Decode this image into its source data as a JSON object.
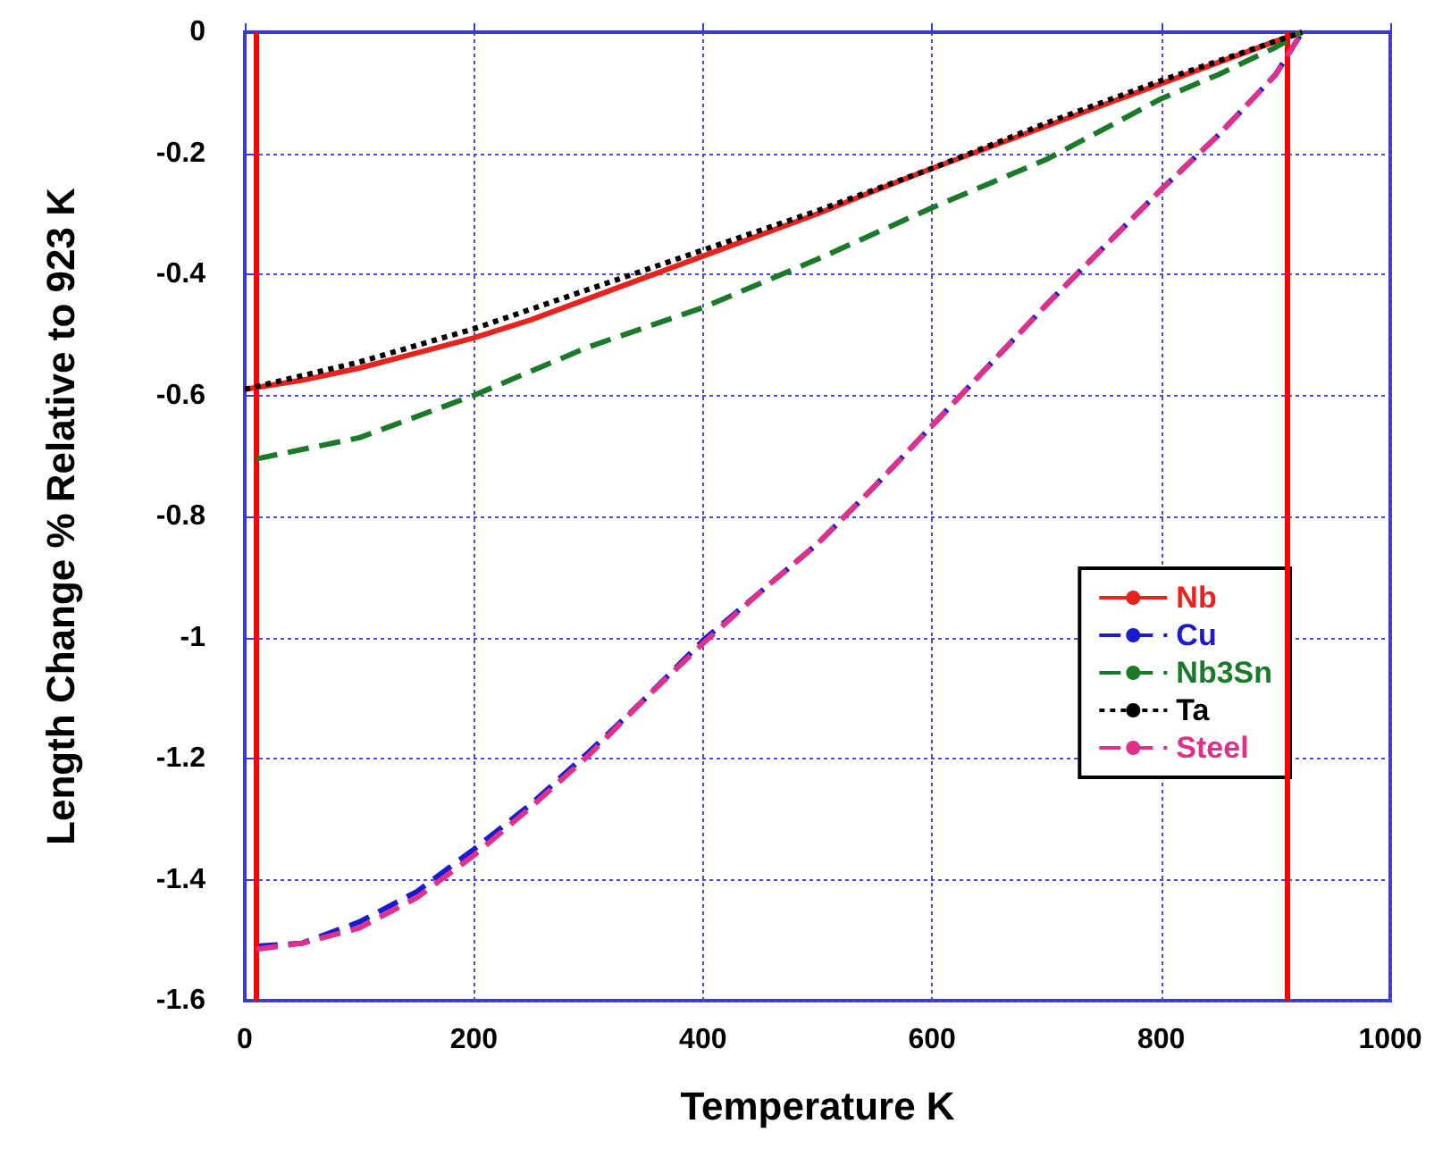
{
  "chart_data": {
    "type": "line",
    "xlabel": "Temperature K",
    "ylabel": "Length Change % Relative to 923 K",
    "xlim": [
      0,
      1000
    ],
    "xticks": [
      0,
      200,
      400,
      600,
      800,
      1000
    ],
    "ylim": [
      -1.6,
      0
    ],
    "yticks": [
      -1.6,
      -1.4,
      -1.2,
      -1,
      -0.8,
      -0.6,
      -0.4,
      -0.2,
      0
    ],
    "grid": true,
    "legend": "right",
    "marker": "none",
    "ref_lines": [
      {
        "axis": "x",
        "value": 10,
        "color": "#ff0000"
      },
      {
        "axis": "x",
        "value": 910,
        "color": "#ff0000"
      }
    ],
    "series": [
      {
        "name": "Nb",
        "color": "#e8231e",
        "line_style": "solid",
        "x": [
          0,
          50,
          100,
          150,
          200,
          250,
          300,
          350,
          400,
          450,
          500,
          550,
          600,
          650,
          700,
          750,
          800,
          850,
          900,
          923
        ],
        "values": [
          -0.59,
          -0.575,
          -0.555,
          -0.53,
          -0.505,
          -0.475,
          -0.44,
          -0.405,
          -0.37,
          -0.335,
          -0.3,
          -0.262,
          -0.225,
          -0.19,
          -0.155,
          -0.12,
          -0.085,
          -0.05,
          -0.015,
          0
        ]
      },
      {
        "name": "Cu",
        "color": "#1a1ad0",
        "line_style": "dashed",
        "x": [
          10,
          50,
          100,
          150,
          200,
          250,
          300,
          350,
          400,
          450,
          500,
          550,
          600,
          650,
          700,
          750,
          800,
          850,
          900,
          923
        ],
        "values": [
          -1.51,
          -1.505,
          -1.47,
          -1.42,
          -1.35,
          -1.275,
          -1.19,
          -1.1,
          -1.005,
          -0.925,
          -0.845,
          -0.75,
          -0.65,
          -0.55,
          -0.45,
          -0.355,
          -0.26,
          -0.17,
          -0.07,
          0
        ]
      },
      {
        "name": "Nb3Sn",
        "color": "#1a7a2a",
        "line_style": "dashed",
        "x": [
          10,
          100,
          200,
          300,
          400,
          500,
          600,
          700,
          800,
          850,
          900,
          923
        ],
        "values": [
          -0.705,
          -0.67,
          -0.6,
          -0.52,
          -0.455,
          -0.375,
          -0.29,
          -0.21,
          -0.11,
          -0.07,
          -0.025,
          0
        ]
      },
      {
        "name": "Ta",
        "color": "#000000",
        "line_style": "dotted",
        "x": [
          0,
          100,
          200,
          300,
          400,
          500,
          600,
          700,
          800,
          923
        ],
        "values": [
          -0.59,
          -0.545,
          -0.49,
          -0.425,
          -0.36,
          -0.295,
          -0.225,
          -0.15,
          -0.08,
          0
        ]
      },
      {
        "name": "Steel",
        "color": "#e0308a",
        "line_style": "dashed",
        "x": [
          10,
          50,
          100,
          150,
          200,
          250,
          300,
          350,
          400,
          450,
          500,
          550,
          600,
          650,
          700,
          750,
          800,
          850,
          900,
          923
        ],
        "values": [
          -1.515,
          -1.505,
          -1.48,
          -1.43,
          -1.36,
          -1.28,
          -1.195,
          -1.1,
          -1.01,
          -0.925,
          -0.845,
          -0.75,
          -0.65,
          -0.55,
          -0.45,
          -0.355,
          -0.26,
          -0.17,
          -0.07,
          0
        ]
      }
    ]
  }
}
